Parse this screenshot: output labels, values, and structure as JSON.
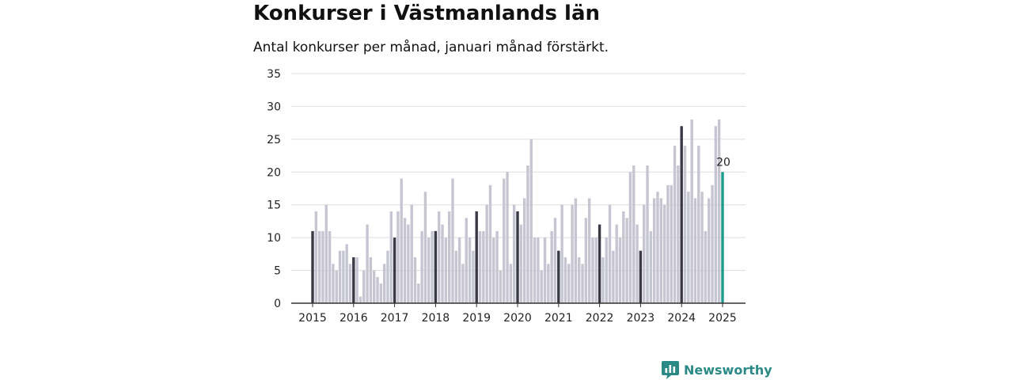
{
  "chart_data": {
    "type": "bar",
    "title": "Konkurser i Västmanlands län",
    "subtitle": "Antal konkurser per månad, januari månad förstärkt.",
    "xlabel": "",
    "ylabel": "",
    "ylim": [
      0,
      35
    ],
    "yticks": [
      "0",
      "5",
      "10",
      "15",
      "20",
      "25",
      "30",
      "35"
    ],
    "xticks": [
      "2015",
      "2016",
      "2017",
      "2018",
      "2019",
      "2020",
      "2021",
      "2022",
      "2023",
      "2024",
      "2025"
    ],
    "grid": true,
    "start_month": "2015-01",
    "values": [
      11,
      14,
      11,
      11,
      15,
      11,
      6,
      5,
      8,
      8,
      9,
      6,
      7,
      7,
      1,
      5,
      12,
      7,
      5,
      4,
      3,
      6,
      8,
      14,
      10,
      14,
      19,
      13,
      12,
      15,
      7,
      3,
      11,
      17,
      10,
      11,
      11,
      14,
      12,
      10,
      14,
      19,
      8,
      10,
      6,
      13,
      10,
      8,
      14,
      11,
      11,
      15,
      18,
      10,
      11,
      5,
      19,
      20,
      6,
      15,
      14,
      12,
      16,
      21,
      25,
      10,
      10,
      5,
      10,
      6,
      11,
      13,
      8,
      15,
      7,
      6,
      15,
      16,
      7,
      6,
      13,
      16,
      10,
      10,
      12,
      7,
      10,
      15,
      8,
      12,
      10,
      14,
      13,
      20,
      21,
      12,
      8,
      15,
      21,
      11,
      16,
      17,
      16,
      15,
      18,
      18,
      24,
      21,
      27,
      24,
      17,
      28,
      16,
      24,
      17,
      11,
      16,
      18,
      27,
      28,
      20
    ],
    "last_value_label": "20",
    "colors": {
      "bar": "#c6c6d2",
      "january": "#3a3a46",
      "latest": "#1a9c8e",
      "grid": "#dddddd",
      "axis": "#333333"
    }
  },
  "branding": {
    "name": "Newsworthy",
    "icon": "newsworthy-logo-icon",
    "color": "#2c8a86"
  }
}
